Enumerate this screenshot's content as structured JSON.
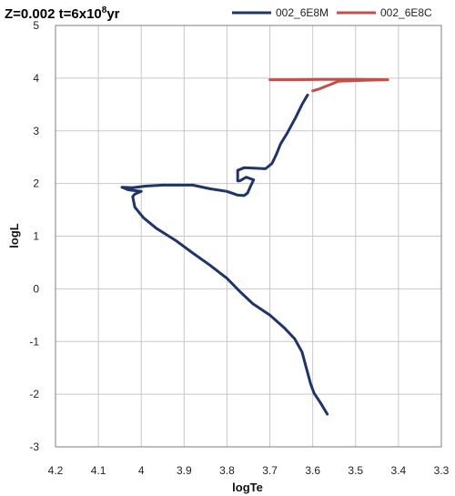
{
  "chart_data": {
    "type": "line",
    "title": {
      "prefix": "Z=0.002 t=6x10",
      "sup": "8",
      "suffix": "yr"
    },
    "xlabel": "logTe",
    "ylabel": "logL",
    "xlim": [
      4.2,
      3.3
    ],
    "ylim": [
      -3,
      5
    ],
    "x_reversed": true,
    "x_ticks": [
      "4.2",
      "4.1",
      "4",
      "3.9",
      "3.8",
      "3.7",
      "3.6",
      "3.5",
      "3.4",
      "3.3"
    ],
    "y_ticks": [
      "-3",
      "-2",
      "-1",
      "0",
      "1",
      "2",
      "3",
      "4",
      "5"
    ],
    "grid": true,
    "legend_position": "top-right",
    "series": [
      {
        "name": "002_6E8M",
        "color": "#1f3468",
        "points": [
          [
            3.566,
            -2.38
          ],
          [
            3.583,
            -2.15
          ],
          [
            3.597,
            -1.98
          ],
          [
            3.605,
            -1.8
          ],
          [
            3.615,
            -1.5
          ],
          [
            3.625,
            -1.2
          ],
          [
            3.642,
            -0.95
          ],
          [
            3.665,
            -0.75
          ],
          [
            3.7,
            -0.5
          ],
          [
            3.74,
            -0.28
          ],
          [
            3.77,
            -0.05
          ],
          [
            3.8,
            0.2
          ],
          [
            3.84,
            0.45
          ],
          [
            3.88,
            0.68
          ],
          [
            3.92,
            0.92
          ],
          [
            3.965,
            1.15
          ],
          [
            3.995,
            1.35
          ],
          [
            4.015,
            1.55
          ],
          [
            4.02,
            1.75
          ],
          [
            4.015,
            1.8
          ],
          [
            4.0,
            1.85
          ],
          [
            4.03,
            1.88
          ],
          [
            4.045,
            1.93
          ],
          [
            4.02,
            1.92
          ],
          [
            3.99,
            1.95
          ],
          [
            3.95,
            1.97
          ],
          [
            3.88,
            1.97
          ],
          [
            3.84,
            1.9
          ],
          [
            3.8,
            1.85
          ],
          [
            3.775,
            1.78
          ],
          [
            3.76,
            1.77
          ],
          [
            3.752,
            1.82
          ],
          [
            3.745,
            1.95
          ],
          [
            3.738,
            2.07
          ],
          [
            3.755,
            2.12
          ],
          [
            3.77,
            2.05
          ],
          [
            3.775,
            2.05
          ],
          [
            3.775,
            2.25
          ],
          [
            3.76,
            2.3
          ],
          [
            3.71,
            2.28
          ],
          [
            3.695,
            2.38
          ],
          [
            3.685,
            2.55
          ],
          [
            3.675,
            2.75
          ],
          [
            3.66,
            2.95
          ],
          [
            3.64,
            3.25
          ],
          [
            3.625,
            3.5
          ],
          [
            3.612,
            3.68
          ]
        ]
      },
      {
        "name": "002_6E8C",
        "color": "#c0504d",
        "points": [
          [
            3.7,
            3.97
          ],
          [
            3.64,
            3.97
          ],
          [
            3.58,
            3.975
          ],
          [
            3.5,
            3.975
          ],
          [
            3.425,
            3.97
          ],
          [
            3.48,
            3.96
          ],
          [
            3.54,
            3.94
          ],
          [
            3.565,
            3.86
          ],
          [
            3.583,
            3.8
          ],
          [
            3.6,
            3.76
          ]
        ]
      }
    ]
  }
}
